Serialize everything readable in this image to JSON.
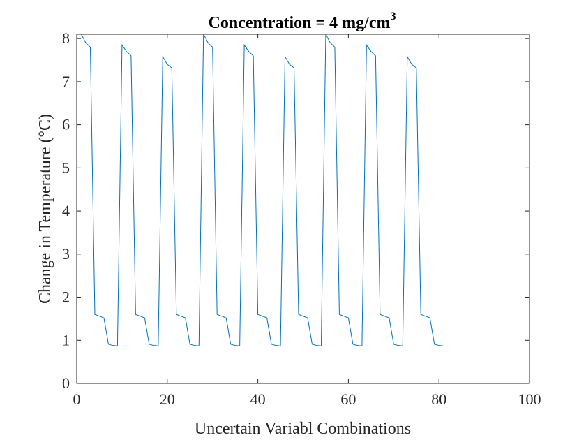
{
  "chart_data": {
    "type": "line",
    "title": "Concentration = 4 mg/cm",
    "title_superscript": "3",
    "xlabel": "Uncertain Variabl Combinations",
    "ylabel": "Change in Temperature (°C)",
    "xlim": [
      0,
      100
    ],
    "ylim": [
      0,
      8.1
    ],
    "x_ticks": [
      "0",
      "20",
      "40",
      "60",
      "80",
      "100"
    ],
    "y_ticks": [
      "0",
      "1",
      "2",
      "3",
      "4",
      "5",
      "6",
      "7",
      "8"
    ],
    "x_tick_values": [
      0,
      20,
      40,
      60,
      80,
      100
    ],
    "y_tick_values": [
      0,
      1,
      2,
      3,
      4,
      5,
      6,
      7,
      8
    ],
    "grid": false,
    "line_color": "#0072BD",
    "series": [
      {
        "x": [
          1,
          2,
          3,
          4,
          5,
          6,
          7,
          8,
          9,
          10,
          11,
          12,
          13,
          14,
          15,
          16,
          17,
          18,
          19,
          20,
          21,
          22,
          23,
          24,
          25,
          26,
          27,
          28,
          29,
          30,
          31,
          32,
          33,
          34,
          35,
          36,
          37,
          38,
          39,
          40,
          41,
          42,
          43,
          44,
          45,
          46,
          47,
          48,
          49,
          50,
          51,
          52,
          53,
          54,
          55,
          56,
          57,
          58,
          59,
          60,
          61,
          62,
          63,
          64,
          65,
          66,
          67,
          68,
          69,
          70,
          71,
          72,
          73,
          74,
          75,
          76,
          77,
          78,
          79,
          80,
          81
        ],
        "values": [
          8.1,
          7.9,
          7.8,
          1.6,
          1.56,
          1.52,
          0.91,
          0.88,
          0.87,
          7.85,
          7.7,
          7.6,
          1.6,
          1.56,
          1.52,
          0.91,
          0.88,
          0.87,
          7.58,
          7.4,
          7.32,
          1.6,
          1.56,
          1.52,
          0.91,
          0.88,
          0.87,
          8.1,
          7.9,
          7.8,
          1.6,
          1.56,
          1.52,
          0.91,
          0.88,
          0.87,
          7.85,
          7.7,
          7.6,
          1.6,
          1.56,
          1.52,
          0.91,
          0.88,
          0.87,
          7.58,
          7.4,
          7.32,
          1.6,
          1.56,
          1.52,
          0.91,
          0.88,
          0.87,
          8.1,
          7.9,
          7.8,
          1.6,
          1.56,
          1.52,
          0.91,
          0.88,
          0.87,
          7.85,
          7.7,
          7.6,
          1.6,
          1.56,
          1.52,
          0.91,
          0.88,
          0.87,
          7.58,
          7.4,
          7.32,
          1.6,
          1.56,
          1.52,
          0.91,
          0.88,
          0.87
        ]
      }
    ]
  }
}
